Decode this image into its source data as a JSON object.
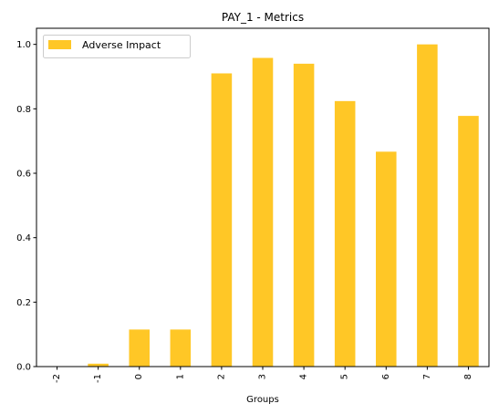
{
  "chart_data": {
    "type": "bar",
    "title": "PAY_1 - Metrics",
    "xlabel": "Groups",
    "ylabel": "",
    "categories": [
      "-2",
      "-1",
      "0",
      "1",
      "2",
      "3",
      "4",
      "5",
      "6",
      "7",
      "8"
    ],
    "series": [
      {
        "name": "Adverse Impact",
        "color": "#ffc726",
        "values": [
          0.0,
          0.009,
          0.115,
          0.115,
          0.91,
          0.958,
          0.94,
          0.824,
          0.667,
          1.0,
          0.778
        ]
      }
    ],
    "ylim": [
      0,
      1.05
    ],
    "yticks": [
      0.0,
      0.2,
      0.4,
      0.6,
      0.8,
      1.0
    ],
    "ytick_labels": [
      "0.0",
      "0.2",
      "0.4",
      "0.6",
      "0.8",
      "1.0"
    ],
    "legend": "top-left",
    "grid": false
  }
}
